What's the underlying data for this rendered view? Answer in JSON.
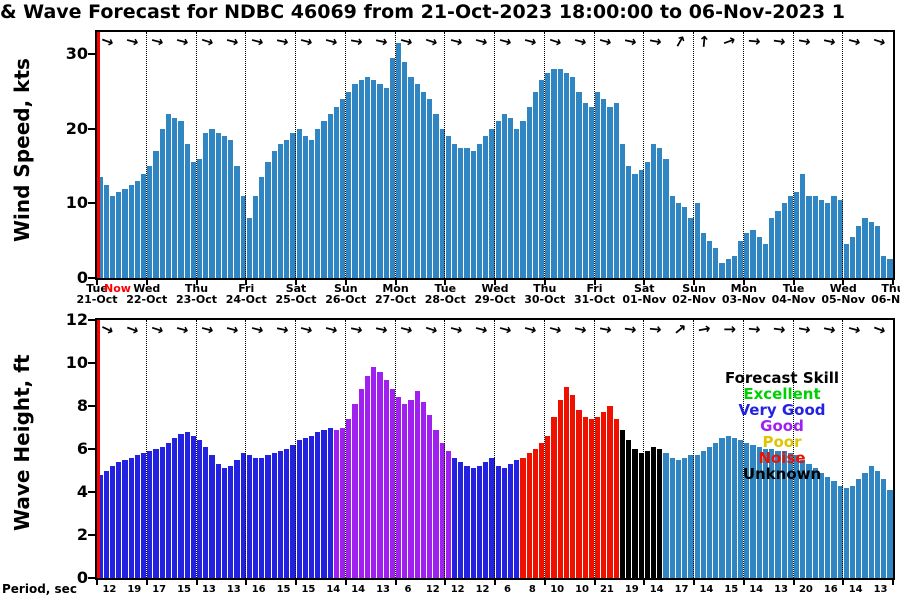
{
  "title": "& Wave Forecast for NDBC 46069 from 21-Oct-2023 18:00:00 to 06-Nov-2023 1",
  "colors": {
    "wind": "#2f86c2",
    "forecast": "#2f86c2",
    "excellent": "#00d000",
    "very_good": "#2222e0",
    "good": "#a020f0",
    "poor": "#e0c400",
    "noise": "#ee1100",
    "unknown": "#000000",
    "now": "#ff0000"
  },
  "chart_data": [
    {
      "type": "bar",
      "name": "wind_speed",
      "ylabel": "Wind Speed, kts",
      "ylim": [
        0,
        33
      ],
      "yticks": [
        0,
        10,
        20,
        30
      ],
      "x_start": "21-Oct-2023",
      "x_end": "06-Nov-2023",
      "bars_per_day": 8,
      "bar_color": "wind",
      "arrow_glyph": "→",
      "values": [
        13.5,
        12.5,
        11,
        11.5,
        12,
        12.5,
        13,
        14,
        15,
        17,
        20,
        22,
        21.5,
        21,
        18,
        15.5,
        16,
        19.5,
        20,
        19.5,
        19,
        18.5,
        15,
        11,
        8,
        11,
        13.5,
        15.5,
        17,
        18,
        18.5,
        19.5,
        20,
        19,
        18.5,
        20,
        21,
        22,
        23,
        24,
        25,
        26,
        26.5,
        27,
        26.5,
        26,
        25.5,
        29.5,
        31.5,
        29,
        27,
        26,
        25,
        24,
        22,
        20,
        19,
        18,
        17.5,
        17.5,
        17,
        18,
        19,
        20,
        21,
        22,
        21.5,
        20,
        21,
        23,
        25,
        26.5,
        27.5,
        28,
        28,
        27.5,
        27,
        25,
        23.5,
        23,
        25,
        24,
        23,
        23.5,
        18,
        15,
        14,
        14.5,
        15.5,
        18,
        17.5,
        16,
        11,
        10,
        9.5,
        8,
        10,
        6,
        5,
        4,
        2,
        2.5,
        3,
        5,
        6,
        6.5,
        5.5,
        4.5,
        8,
        9,
        10,
        11,
        11.5,
        14,
        11,
        11,
        10.5,
        10,
        11,
        10.5,
        4.5,
        5.5,
        7,
        8,
        7.5,
        7,
        3,
        2.5
      ],
      "arrow_angles_deg": [
        20,
        15,
        15,
        15,
        18,
        15,
        15,
        12,
        15,
        15,
        10,
        12,
        15,
        18,
        15,
        15,
        15,
        15,
        18,
        15,
        15,
        12,
        10,
        -60,
        -85,
        -20,
        5,
        8,
        10,
        12,
        15,
        18
      ]
    },
    {
      "type": "bar",
      "name": "wave_height",
      "ylabel": "Wave Height, ft",
      "ylim": [
        0,
        12
      ],
      "yticks": [
        0,
        2,
        4,
        6,
        8,
        10,
        12
      ],
      "x_start": "21-Oct-2023",
      "x_end": "06-Nov-2023",
      "bars_per_day": 8,
      "arrow_glyph": "→",
      "values": [
        4.8,
        5.0,
        5.2,
        5.4,
        5.5,
        5.6,
        5.7,
        5.8,
        5.9,
        6.0,
        6.1,
        6.3,
        6.5,
        6.7,
        6.8,
        6.6,
        6.4,
        6.1,
        5.7,
        5.3,
        5.1,
        5.2,
        5.5,
        5.8,
        5.7,
        5.6,
        5.6,
        5.7,
        5.8,
        5.9,
        6.0,
        6.2,
        6.4,
        6.5,
        6.6,
        6.8,
        6.9,
        7.0,
        6.9,
        7.0,
        7.4,
        8.1,
        8.8,
        9.4,
        9.8,
        9.6,
        9.2,
        8.8,
        8.4,
        8.1,
        8.3,
        8.7,
        8.2,
        7.6,
        6.9,
        6.3,
        5.9,
        5.6,
        5.4,
        5.2,
        5.1,
        5.2,
        5.4,
        5.6,
        5.2,
        5.1,
        5.3,
        5.5,
        5.6,
        5.8,
        6.0,
        6.3,
        6.6,
        7.5,
        8.3,
        8.9,
        8.5,
        7.8,
        7.5,
        7.4,
        7.5,
        7.7,
        8.0,
        7.4,
        6.9,
        6.4,
        6.0,
        5.8,
        5.9,
        6.1,
        6.0,
        5.8,
        5.6,
        5.5,
        5.6,
        5.7,
        5.7,
        5.9,
        6.1,
        6.3,
        6.5,
        6.6,
        6.5,
        6.4,
        6.3,
        6.2,
        6.1,
        6.0,
        6.0,
        5.9,
        5.9,
        5.8,
        5.7,
        5.5,
        5.3,
        5.1,
        4.9,
        4.7,
        4.5,
        4.3,
        4.2,
        4.3,
        4.6,
        4.9,
        5.2,
        5.0,
        4.6,
        4.1
      ],
      "skill_segments": [
        {
          "from": 0,
          "to": 37,
          "skill": "very_good"
        },
        {
          "from": 38,
          "to": 56,
          "skill": "good"
        },
        {
          "from": 57,
          "to": 67,
          "skill": "very_good"
        },
        {
          "from": 68,
          "to": 83,
          "skill": "noise"
        },
        {
          "from": 84,
          "to": 90,
          "skill": "unknown"
        },
        {
          "from": 91,
          "to": 127,
          "skill": "forecast"
        }
      ],
      "arrow_angles_deg": [
        25,
        20,
        18,
        15,
        15,
        15,
        15,
        12,
        15,
        15,
        12,
        12,
        15,
        18,
        15,
        15,
        15,
        15,
        15,
        12,
        10,
        8,
        5,
        -40,
        -10,
        0,
        5,
        8,
        10,
        12,
        15,
        20
      ]
    }
  ],
  "xaxis": {
    "days": [
      "Tue",
      "Wed",
      "Thu",
      "Fri",
      "Sat",
      "Sun",
      "Mon",
      "Tue",
      "Wed",
      "Thu",
      "Fri",
      "Sat",
      "Sun",
      "Mon",
      "Tue",
      "Wed",
      "Thu"
    ],
    "dates": [
      "21-Oct",
      "22-Oct",
      "23-Oct",
      "24-Oct",
      "25-Oct",
      "26-Oct",
      "27-Oct",
      "28-Oct",
      "29-Oct",
      "30-Oct",
      "31-Oct",
      "01-Nov",
      "02-Nov",
      "03-Nov",
      "04-Nov",
      "05-Nov",
      "06-Nov"
    ],
    "now_label": "Now"
  },
  "legend": {
    "title": "Forecast Skill",
    "items": [
      {
        "label": "Excellent",
        "color": "excellent"
      },
      {
        "label": "Very Good",
        "color": "very_good"
      },
      {
        "label": "Good",
        "color": "good"
      },
      {
        "label": "Poor",
        "color": "poor"
      },
      {
        "label": "Noise",
        "color": "noise"
      },
      {
        "label": "Unknown",
        "color": "unknown"
      }
    ]
  },
  "period_row": {
    "label": "Period, sec",
    "values": [
      12,
      19,
      17,
      15,
      13,
      13,
      16,
      15,
      15,
      14,
      14,
      13,
      6,
      12,
      12,
      12,
      6,
      8,
      10,
      10,
      21,
      19,
      14,
      17,
      14,
      15,
      14,
      13,
      20,
      16,
      14,
      13
    ]
  }
}
